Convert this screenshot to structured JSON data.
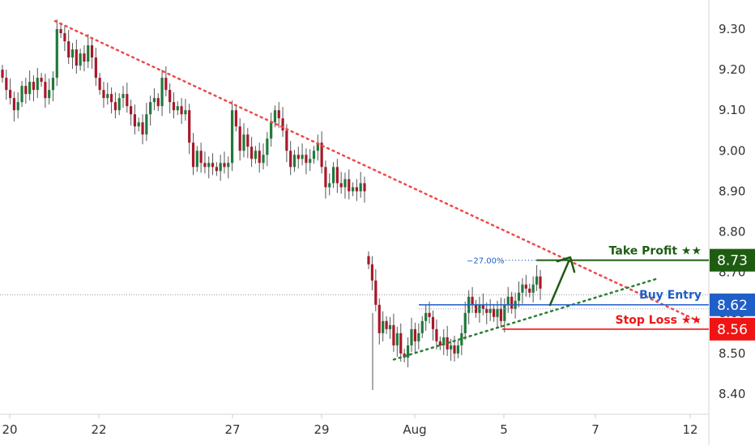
{
  "chart_data": {
    "type": "candlestick",
    "y_axis": {
      "range": [
        8.36,
        9.355
      ],
      "ticks": [
        "9.30",
        "9.20",
        "9.10",
        "9.00",
        "8.90",
        "8.80",
        "8.70",
        "8.60",
        "8.50",
        "8.40"
      ],
      "tick_values": [
        9.3,
        9.2,
        9.1,
        9.0,
        8.9,
        8.8,
        8.7,
        8.6,
        8.5,
        8.4
      ]
    },
    "x_axis": {
      "ticks": [
        "20",
        "22",
        "27",
        "29",
        "Aug",
        "5",
        "7",
        "12"
      ]
    },
    "current_price": 8.645,
    "levels": {
      "take_profit": {
        "label": "Take Profit ★★",
        "value": 8.73,
        "badge": "8.73",
        "color": "#1e5c12",
        "pct_label": "−27.00%"
      },
      "buy_entry": {
        "label": "Buy Entry",
        "value": 8.62,
        "badge": "8.62",
        "color": "#1f5fc7"
      },
      "stop_loss": {
        "label": "Stop Loss ★★",
        "value": 8.56,
        "badge": "8.56",
        "color": "#f01414"
      }
    },
    "trendlines": [
      {
        "name": "descending-resistance",
        "color": "#f04848",
        "from": [
          0,
          9.32
        ],
        "to": [
          1,
          8.58
        ]
      },
      {
        "name": "ascending-support",
        "color": "#2e7d32",
        "from": [
          0,
          8.485
        ],
        "to": [
          1,
          8.685
        ]
      }
    ],
    "segment1": {
      "values": [
        9.18,
        9.15,
        9.13,
        9.1,
        9.12,
        9.16,
        9.14,
        9.17,
        9.15,
        9.18,
        9.17,
        9.13,
        9.15,
        9.18,
        9.3,
        9.29,
        9.27,
        9.23,
        9.25,
        9.21,
        9.24,
        9.22,
        9.26,
        9.23,
        9.18,
        9.15,
        9.13,
        9.14,
        9.12,
        9.1,
        9.13,
        9.14,
        9.11,
        9.09,
        9.06,
        9.07,
        9.04,
        9.09,
        9.12,
        9.13,
        9.11,
        9.18,
        9.15,
        9.12,
        9.1,
        9.11,
        9.09,
        9.1,
        9.02,
        8.96,
        9.0,
        8.97,
        8.96,
        8.97,
        8.96,
        8.95,
        8.97,
        8.96,
        8.97,
        9.1,
        9.06,
        9.0,
        9.04,
        9.01,
        8.98,
        9.0,
        8.97,
        8.99,
        9.03,
        9.07,
        9.1,
        9.08,
        9.05,
        9.0,
        8.96,
        8.99,
        8.98,
        8.99,
        8.97,
        8.98,
        9.0,
        9.02,
        8.96,
        8.91,
        8.92,
        8.96,
        8.92,
        8.91,
        8.93,
        8.9,
        8.91,
        8.9,
        8.92,
        8.9
      ]
    },
    "segment2": {
      "values": [
        8.72,
        8.68,
        8.62,
        8.55,
        8.58,
        8.56,
        8.57,
        8.52,
        8.55,
        8.5,
        8.49,
        8.52,
        8.56,
        8.53,
        8.55,
        8.58,
        8.6,
        8.59,
        8.56,
        8.53,
        8.52,
        8.54,
        8.51,
        8.52,
        8.5,
        8.52,
        8.55,
        8.6,
        8.64,
        8.62,
        8.6,
        8.62,
        8.61,
        8.6,
        8.61,
        8.59,
        8.61,
        8.58,
        8.62,
        8.64,
        8.61,
        8.63,
        8.65,
        8.67,
        8.66,
        8.65,
        8.67,
        8.69,
        8.66
      ]
    }
  }
}
